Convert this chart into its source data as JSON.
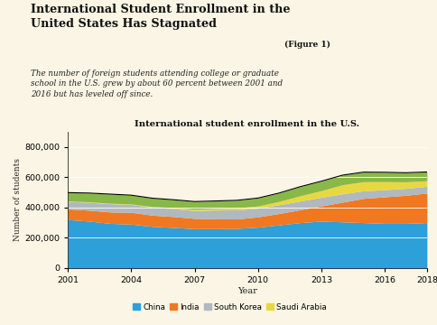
{
  "title_main": "International Student Enrollment in the\nUnited States Has Stagnated",
  "title_figure": "(Figure 1)",
  "subtitle": "The number of foreign students attending college or graduate\nschool in the U.S. grew by about 60 percent between 2001 and\n2016 but has leveled off since.",
  "chart_title": "International student enrollment in the U.S.",
  "xlabel": "Year",
  "ylabel": "Number of students",
  "background_top": "#cce0ed",
  "background_chart": "#faf5e4",
  "years": [
    2001,
    2002,
    2003,
    2004,
    2005,
    2006,
    2007,
    2008,
    2009,
    2010,
    2011,
    2012,
    2013,
    2014,
    2015,
    2016,
    2017,
    2018
  ],
  "china": [
    320000,
    310000,
    295000,
    290000,
    275000,
    268000,
    260000,
    260000,
    262000,
    270000,
    285000,
    300000,
    310000,
    305000,
    300000,
    295000,
    295000,
    300000
  ],
  "india": [
    70000,
    72000,
    75000,
    78000,
    74000,
    72000,
    68000,
    65000,
    62000,
    68000,
    75000,
    85000,
    100000,
    130000,
    160000,
    175000,
    185000,
    195000
  ],
  "south_korea": [
    50000,
    52000,
    55000,
    52000,
    52000,
    52000,
    52000,
    58000,
    60000,
    57000,
    58000,
    58000,
    57000,
    55000,
    50000,
    47000,
    46000,
    44000
  ],
  "saudi_arabia": [
    3000,
    3000,
    3000,
    3000,
    5000,
    7000,
    9000,
    10000,
    13000,
    15000,
    22000,
    34000,
    44000,
    60000,
    60000,
    53000,
    43000,
    37000
  ],
  "other": [
    55000,
    58000,
    60000,
    58000,
    55000,
    52000,
    50000,
    50000,
    50000,
    52000,
    55000,
    60000,
    62000,
    63000,
    63000,
    62000,
    60000,
    58000
  ],
  "colors": {
    "china": "#2d9fd9",
    "india": "#f07820",
    "south_korea": "#b0b8c0",
    "saudi_arabia": "#e8d840",
    "other": "#88b848"
  },
  "ylim": [
    0,
    900000
  ],
  "yticks": [
    0,
    200000,
    400000,
    600000,
    800000
  ],
  "xticks": [
    2001,
    2004,
    2007,
    2010,
    2013,
    2016,
    2018
  ]
}
